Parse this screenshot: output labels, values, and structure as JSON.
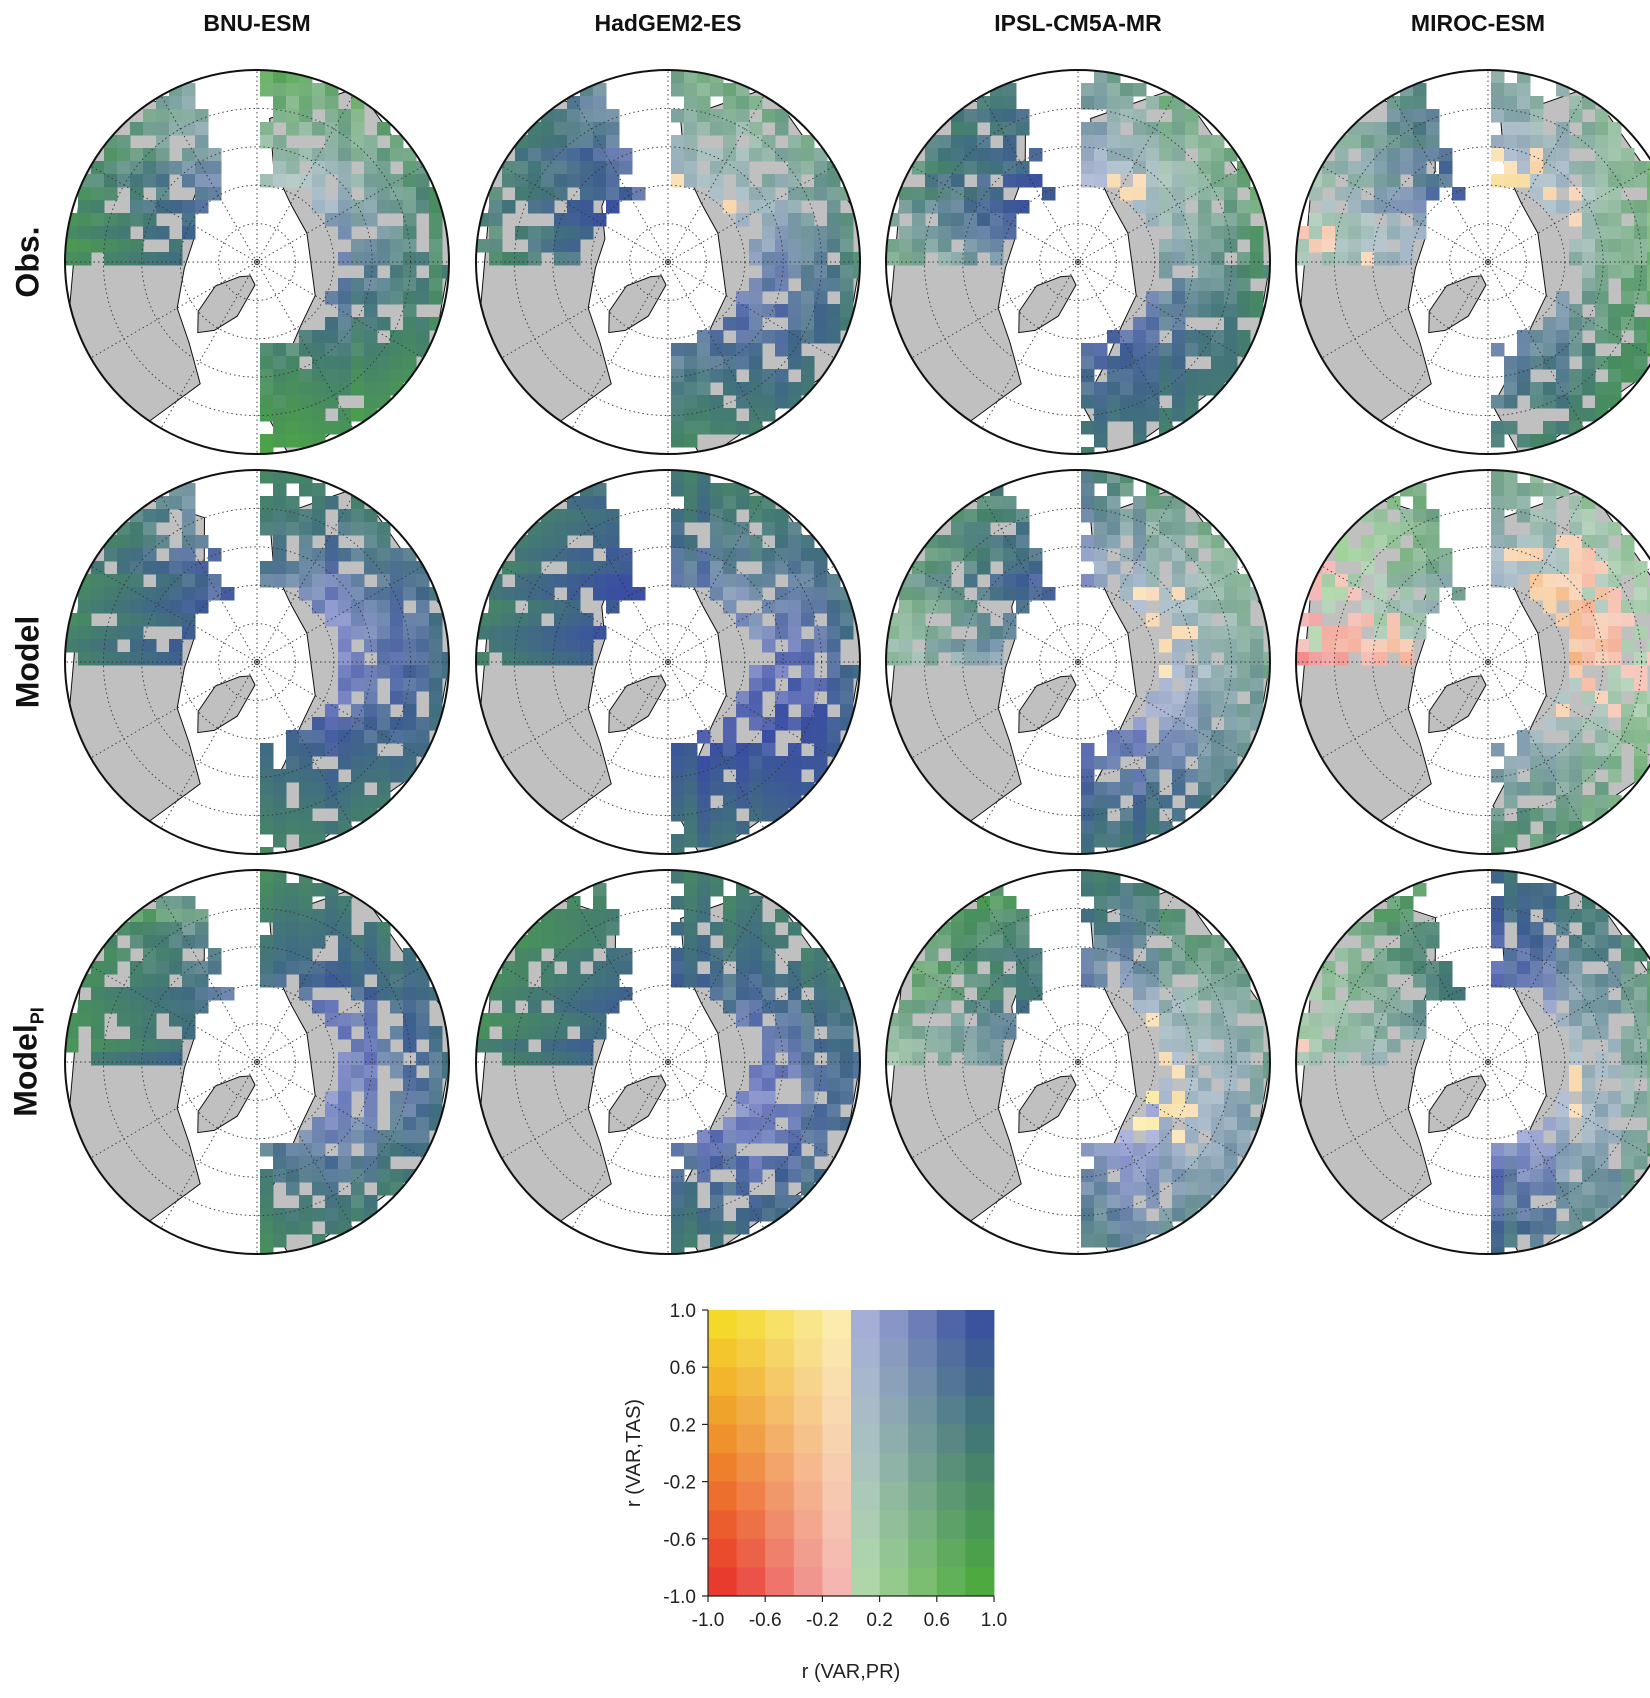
{
  "columns": [
    "BNU-ESM",
    "HadGEM2-ES",
    "IPSL-CM5A-MR",
    "MIROC-ESM"
  ],
  "rows": [
    {
      "label": "Obs.",
      "sub": ""
    },
    {
      "label": "Model",
      "sub": ""
    },
    {
      "label": "Model",
      "sub": "PI"
    }
  ],
  "legend": {
    "x_label": "r (VAR,PR)",
    "y_label": "r (VAR,TAS)",
    "x_ticks": [
      "-1.0",
      "-0.6",
      "-0.2",
      "0.2",
      "0.6",
      "1.0"
    ],
    "y_ticks": [
      "1.0",
      "0.6",
      "0.2",
      "-0.2",
      "-0.6",
      "-1.0"
    ],
    "colors": {
      "negative_pr_positive_tas": "#f5e12a",
      "negative_pr_negative_tas": "#e8312e",
      "positive_pr_positive_tas": "#3a4ea2",
      "positive_pr_negative_tas": "#4fae3c",
      "land_gray": "#c0c0c0"
    }
  }
}
